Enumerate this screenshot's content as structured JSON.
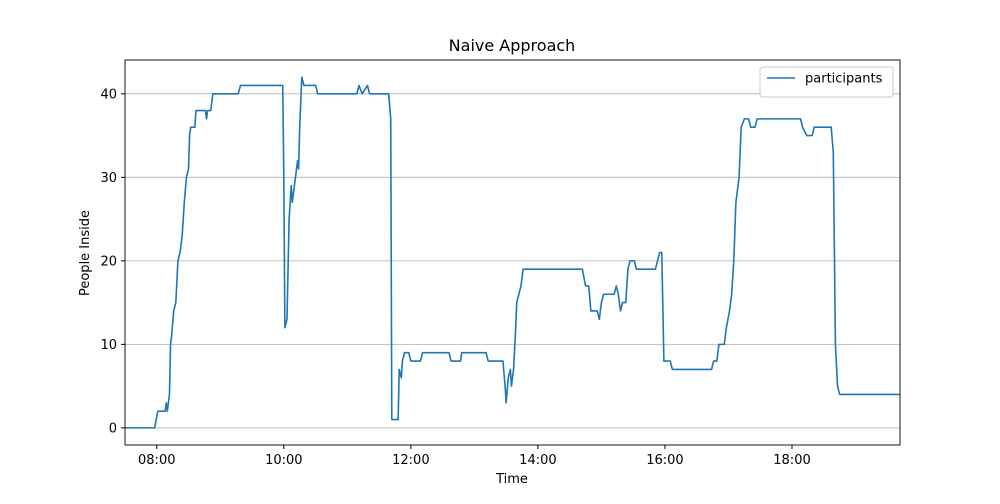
{
  "chart_data": {
    "type": "line",
    "title": "Naive Approach",
    "xlabel": "Time",
    "ylabel": "People Inside",
    "x": [
      "07:30",
      "07:58",
      "08:01",
      "08:08",
      "08:09",
      "08:10",
      "08:11",
      "08:12",
      "08:13",
      "08:14",
      "08:16",
      "08:18",
      "08:20",
      "08:22",
      "08:24",
      "08:26",
      "08:28",
      "08:30",
      "08:31",
      "08:32",
      "08:36",
      "08:37",
      "08:46",
      "08:47",
      "08:48",
      "08:51",
      "08:53",
      "09:17",
      "09:19",
      "09:59",
      "10:00",
      "10:01",
      "10:03",
      "10:05",
      "10:07",
      "10:08",
      "10:10",
      "10:12",
      "10:13",
      "10:14",
      "10:15",
      "10:17",
      "10:19",
      "10:30",
      "10:32",
      "11:09",
      "11:11",
      "11:14",
      "11:19",
      "11:21",
      "11:39",
      "11:41",
      "11:42",
      "11:48",
      "11:49",
      "11:51",
      "11:52",
      "11:54",
      "11:58",
      "12:00",
      "12:09",
      "12:11",
      "12:36",
      "12:38",
      "12:47",
      "12:48",
      "13:11",
      "13:13",
      "13:27",
      "13:29",
      "13:30",
      "13:32",
      "13:34",
      "13:35",
      "13:37",
      "13:39",
      "13:40",
      "13:42",
      "13:44",
      "13:46",
      "14:42",
      "14:45",
      "14:48",
      "14:50",
      "14:56",
      "14:58",
      "15:00",
      "15:02",
      "15:12",
      "15:14",
      "15:16",
      "15:18",
      "15:20",
      "15:23",
      "15:25",
      "15:27",
      "15:31",
      "15:33",
      "15:51",
      "15:53",
      "15:55",
      "15:57",
      "15:59",
      "16:05",
      "16:07",
      "16:44",
      "16:46",
      "16:49",
      "16:51",
      "16:56",
      "16:58",
      "17:01",
      "17:03",
      "17:05",
      "17:07",
      "17:10",
      "17:12",
      "17:15",
      "17:19",
      "17:21",
      "17:25",
      "17:27",
      "18:08",
      "18:10",
      "18:14",
      "18:19",
      "18:21",
      "18:37",
      "18:39",
      "18:41",
      "18:43",
      "18:45",
      "19:42"
    ],
    "series": [
      {
        "name": "participants",
        "color": "#1f77b4",
        "values": [
          0,
          0,
          2,
          2,
          3,
          2,
          3,
          4,
          10,
          11,
          14,
          15,
          20,
          21,
          23,
          27,
          30,
          31,
          35,
          36,
          36,
          38,
          38,
          37,
          38,
          38,
          40,
          40,
          41,
          41,
          30,
          12,
          13,
          25,
          29,
          27,
          29,
          31,
          32,
          31,
          36,
          42,
          41,
          41,
          40,
          40,
          41,
          40,
          41,
          40,
          40,
          37,
          1,
          1,
          7,
          6,
          8,
          9,
          9,
          8,
          8,
          9,
          9,
          8,
          8,
          9,
          9,
          8,
          8,
          5,
          3,
          6,
          7,
          5,
          7,
          12,
          15,
          16,
          17,
          19,
          19,
          17,
          17,
          14,
          14,
          13,
          15,
          16,
          16,
          17,
          16,
          14,
          15,
          15,
          19,
          20,
          20,
          19,
          19,
          20,
          21,
          21,
          8,
          8,
          7,
          7,
          8,
          8,
          10,
          10,
          12,
          14,
          16,
          20,
          27,
          30,
          36,
          37,
          37,
          36,
          36,
          37,
          37,
          36,
          35,
          35,
          36,
          36,
          33,
          10,
          5,
          4,
          4
        ]
      }
    ],
    "xlim": [
      "07:30",
      "19:42"
    ],
    "xticks": [
      "08:00",
      "10:00",
      "12:00",
      "14:00",
      "16:00",
      "18:00"
    ],
    "ylim": [
      -2.05,
      44.05
    ],
    "yticks": [
      0,
      10,
      20,
      30,
      40
    ],
    "grid": "y",
    "legend": "upper right"
  }
}
